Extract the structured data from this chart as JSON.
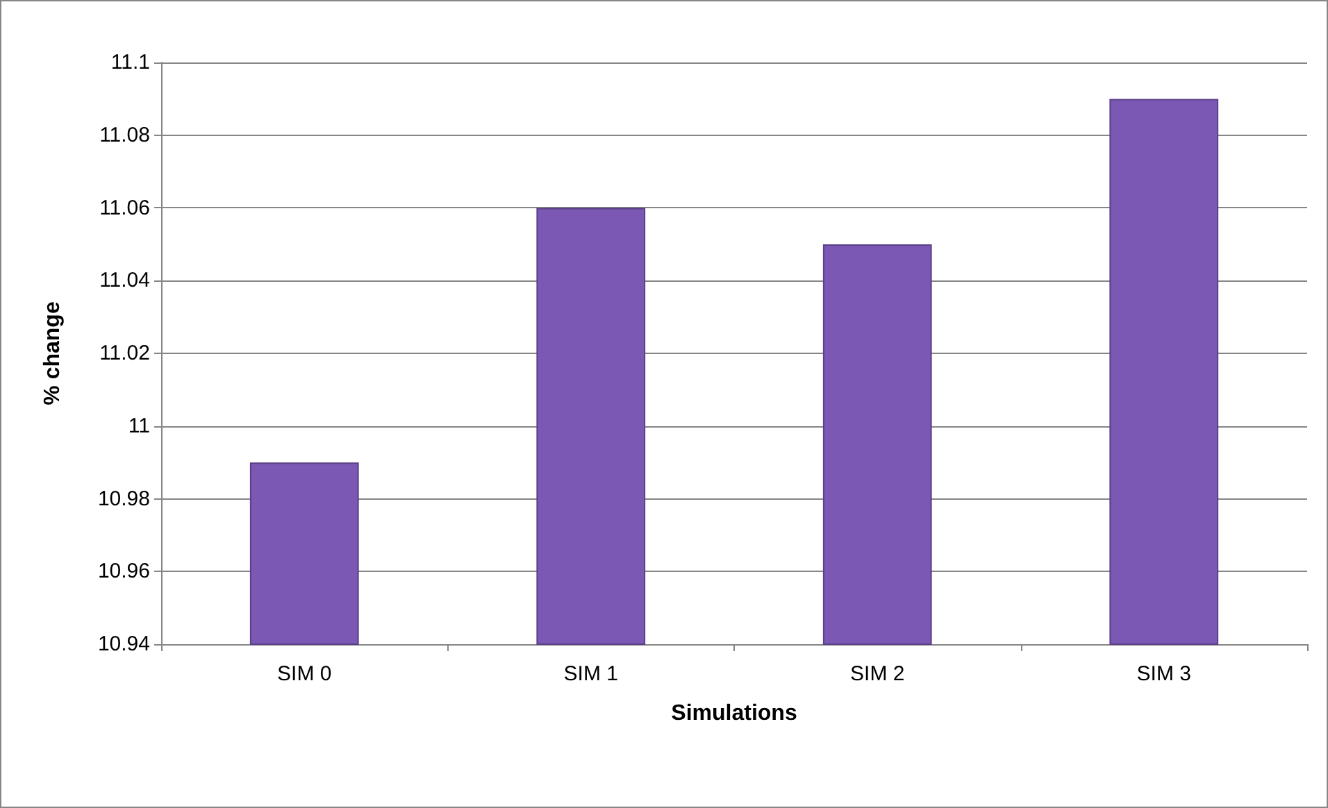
{
  "chart_data": {
    "type": "bar",
    "xlabel": "Simulations",
    "ylabel": "% change",
    "categories": [
      "SIM 0",
      "SIM 1",
      "SIM 2",
      "SIM 3"
    ],
    "values": [
      10.99,
      11.06,
      11.05,
      11.09
    ],
    "color": "#7b58b3",
    "ylim": [
      10.94,
      11.1
    ],
    "yticks": [
      10.94,
      10.96,
      10.98,
      11,
      11.02,
      11.04,
      11.06,
      11.08,
      11.1
    ],
    "grid": "y"
  }
}
